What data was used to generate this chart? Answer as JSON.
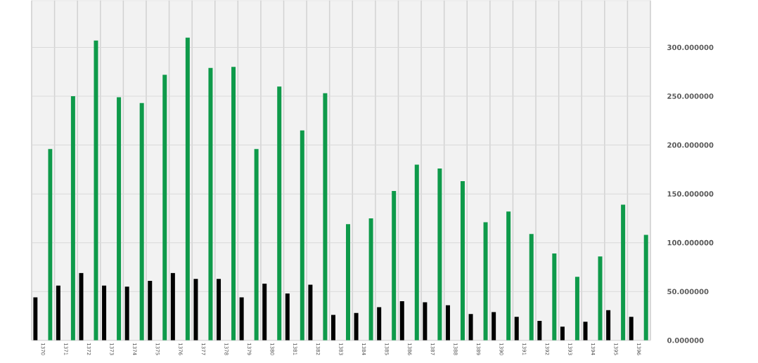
{
  "chart_data": {
    "type": "bar",
    "categories": [
      "1370",
      "1371",
      "1372",
      "1373",
      "1374",
      "1375",
      "1376",
      "1377",
      "1378",
      "1379",
      "1380",
      "1381",
      "1382",
      "1383",
      "1384",
      "1385",
      "1386",
      "1387",
      "1388",
      "1389",
      "1390",
      "1391",
      "1392",
      "1393",
      "1394",
      "1395",
      "1396"
    ],
    "series": [
      {
        "color": "#000000",
        "values": [
          44,
          56,
          69,
          56,
          55,
          61,
          69,
          63,
          63,
          44,
          58,
          48,
          57,
          26,
          28,
          34,
          40,
          39,
          36,
          27,
          29,
          24,
          20,
          14,
          19,
          31,
          24
        ]
      },
      {
        "color": "#0e9a4a",
        "values": [
          196,
          250,
          307,
          249,
          243,
          272,
          310,
          279,
          280,
          196,
          260,
          215,
          253,
          119,
          125,
          153,
          180,
          176,
          163,
          121,
          132,
          109,
          89,
          65,
          86,
          139,
          108
        ]
      }
    ],
    "ylim": [
      0,
      348
    ],
    "yticks": [
      {
        "value": 0,
        "label": "0.000000"
      },
      {
        "value": 50,
        "label": "50.000000"
      },
      {
        "value": 100,
        "label": "100.000000"
      },
      {
        "value": 150,
        "label": "150.000000"
      },
      {
        "value": 200,
        "label": "200.000000"
      },
      {
        "value": 250,
        "label": "250.000000"
      },
      {
        "value": 300,
        "label": "300.000000"
      }
    ],
    "grid": true
  }
}
